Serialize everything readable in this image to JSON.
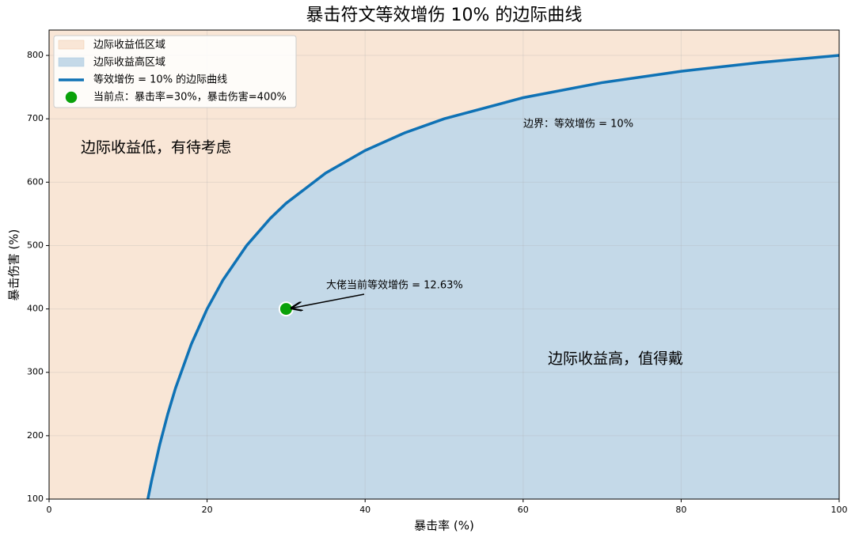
{
  "chart_data": {
    "type": "line",
    "title": "暴击符文等效增伤 10% 的边际曲线",
    "xlabel": "暴击率 (%)",
    "ylabel": "暴击伤害 (%)",
    "xlim": [
      0,
      100
    ],
    "ylim": [
      100,
      840
    ],
    "xticks": [
      0,
      20,
      40,
      60,
      80,
      100
    ],
    "yticks": [
      100,
      200,
      300,
      400,
      500,
      600,
      700,
      800
    ],
    "grid": true,
    "legend": "upper left",
    "regions": [
      {
        "name": "边际收益低区域",
        "color": "#f9e6d6",
        "side": "above"
      },
      {
        "name": "边际收益高区域",
        "color": "#c4d9e8",
        "side": "below"
      }
    ],
    "x": [
      12.5,
      13,
      14,
      15,
      16,
      18,
      20,
      22,
      25,
      28,
      30,
      35,
      40,
      45,
      50,
      60,
      70,
      80,
      90,
      100
    ],
    "series": [
      {
        "name": "等效增伤 = 10% 的边际曲线",
        "color": "#0f72b5",
        "values": [
          100,
          130.8,
          185.7,
          233.3,
          275,
          344.4,
          400,
          445.5,
          500,
          542.9,
          566.7,
          614.3,
          650,
          677.8,
          700,
          733.3,
          757.1,
          775,
          788.9,
          800
        ]
      }
    ],
    "point": {
      "name": "当前点：暴击率=30%，暴击伤害=400%",
      "x": 30,
      "y": 400,
      "color": "#0aa10a"
    },
    "annotations": [
      "边际收益低，有待考虑",
      "边际收益高，值得戴",
      "边界：等效增伤 = 10%",
      "大佬当前等效增伤 = 12.63%"
    ]
  }
}
